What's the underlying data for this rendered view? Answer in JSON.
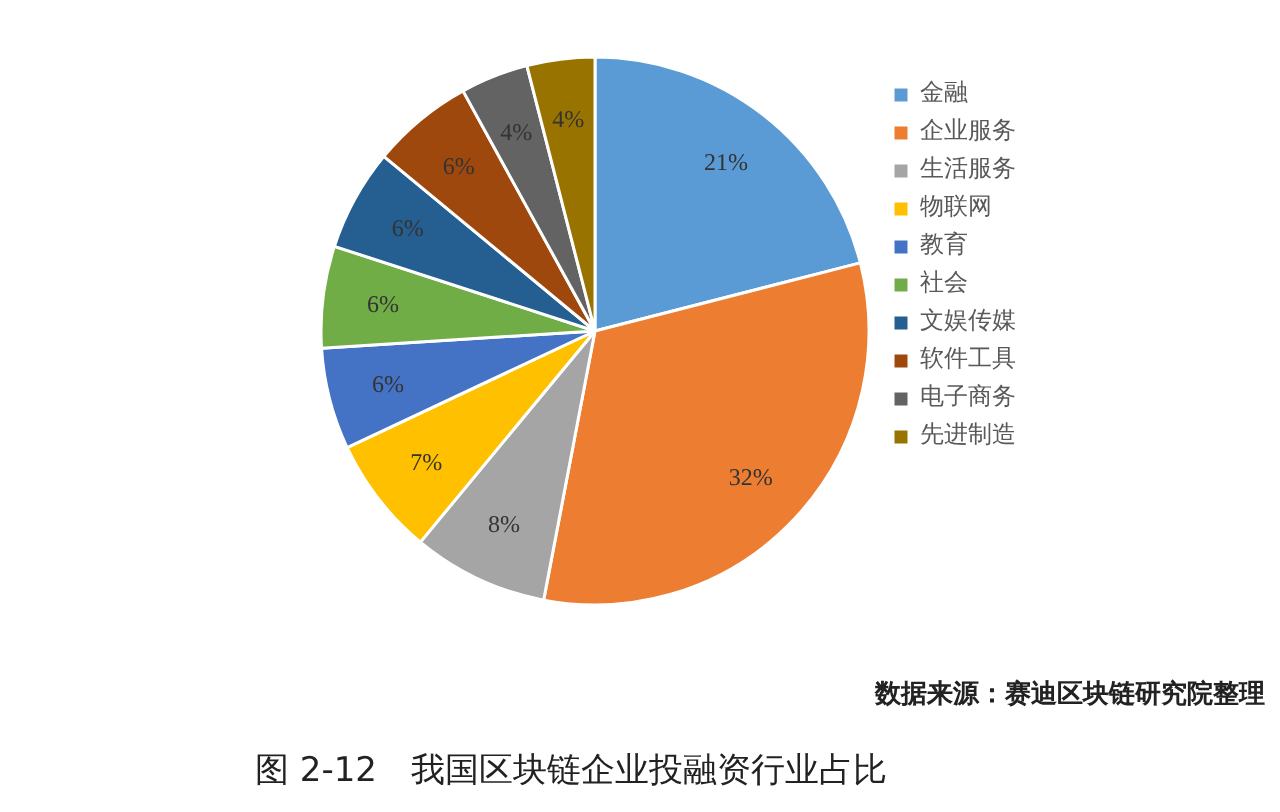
{
  "chart_data": {
    "type": "pie",
    "title": "图 2-12　我国区块链企业投融资行业占比",
    "categories": [
      "金融",
      "企业服务",
      "生活服务",
      "物联网",
      "教育",
      "社会",
      "文娱传媒",
      "软件工具",
      "电子商务",
      "先进制造"
    ],
    "values": [
      21,
      32,
      8,
      7,
      6,
      6,
      6,
      6,
      4,
      4
    ],
    "colors": [
      "#5b9bd5",
      "#ed7d31",
      "#a5a5a5",
      "#ffc000",
      "#4472c4",
      "#70ad47",
      "#255e91",
      "#9e480e",
      "#636363",
      "#997300"
    ],
    "value_labels": [
      "21%",
      "32%",
      "8%",
      "7%",
      "6%",
      "6%",
      "6%",
      "6%",
      "4%",
      "4%"
    ],
    "legend": "right",
    "annotations": [
      "数据来源：赛迪区块链研究院整理"
    ]
  }
}
